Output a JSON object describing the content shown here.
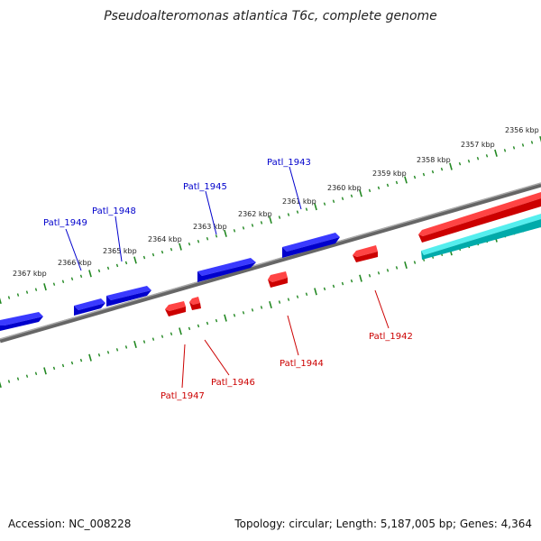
{
  "title": "Pseudoalteromonas atlantica T6c, complete genome",
  "footer": {
    "accession": "Accession: NC_008228",
    "summary": "Topology: circular; Length: 5,187,005 bp; Genes: 4,364"
  },
  "colors": {
    "forward_gene": "#0000ee",
    "reverse_gene": "#ee0000",
    "rna_gene": "#00cccc",
    "backbone": "#888888",
    "ticks": "#228822",
    "forward_label": "#0000cc",
    "reverse_label": "#cc0000"
  },
  "scale_labels": [
    "2356 kbp",
    "2357 kbp",
    "2358 kbp",
    "2359 kbp",
    "2360 kbp",
    "2361 kbp",
    "2362 kbp",
    "2363 kbp",
    "2364 kbp",
    "2365 kbp",
    "2366 kbp",
    "2367 kbp"
  ],
  "gene_labels": {
    "forward": [
      "Patl_1949",
      "Patl_1948",
      "Patl_1945",
      "Patl_1943"
    ],
    "reverse": [
      "Patl_1947",
      "Patl_1946",
      "Patl_1944",
      "Patl_1942"
    ]
  }
}
